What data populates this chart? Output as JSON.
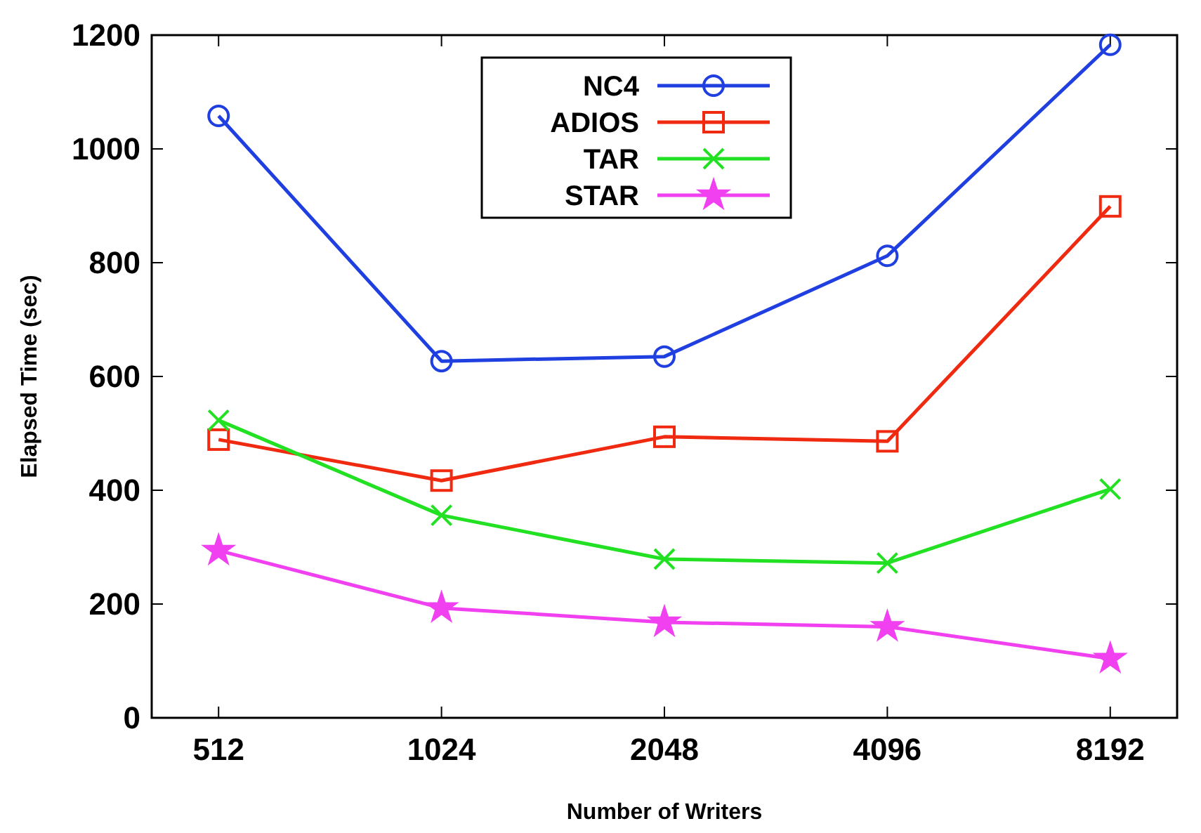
{
  "chart_data": {
    "type": "line",
    "xlabel": "Number of Writers",
    "ylabel": "Elapsed Time (sec)",
    "categories": [
      "512",
      "1024",
      "2048",
      "4096",
      "8192"
    ],
    "ylim": [
      0,
      1200
    ],
    "yticks": [
      0,
      200,
      400,
      600,
      800,
      1000,
      1200
    ],
    "grid": false,
    "legend": "top",
    "series": [
      {
        "name": "NC4",
        "color": "#1f3fe0",
        "marker": "circle",
        "values": [
          1058,
          627,
          635,
          812,
          1183
        ]
      },
      {
        "name": "ADIOS",
        "color": "#f02a10",
        "marker": "square",
        "values": [
          489,
          417,
          494,
          486,
          899
        ]
      },
      {
        "name": "TAR",
        "color": "#22e022",
        "marker": "cross",
        "values": [
          523,
          356,
          279,
          272,
          402
        ]
      },
      {
        "name": "STAR",
        "color": "#f040f0",
        "marker": "star",
        "values": [
          294,
          193,
          168,
          160,
          104
        ]
      }
    ]
  }
}
